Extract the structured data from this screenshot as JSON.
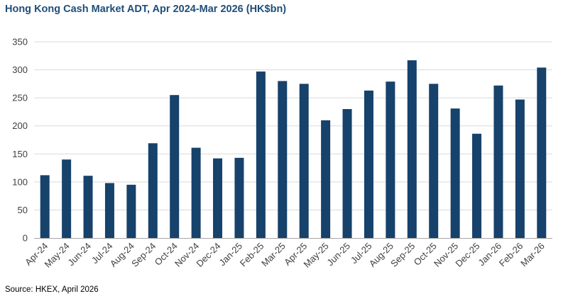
{
  "title": "Hong Kong Cash Market ADT, Apr 2024-Mar 2026 (HK$bn)",
  "source": "Source: HKEX, April 2026",
  "colors": {
    "bar": "#16426b",
    "grid": "#d9d9d9",
    "axis": "#a6a6a6",
    "title": "#1f4e79"
  },
  "chart_data": {
    "type": "bar",
    "title": "Hong Kong Cash Market ADT, Apr 2024-Mar 2026 (HK$bn)",
    "xlabel": "",
    "ylabel": "",
    "ylim": [
      0,
      350
    ],
    "yticks": [
      0,
      50,
      100,
      150,
      200,
      250,
      300,
      350
    ],
    "grid": true,
    "legend": "none",
    "categories": [
      "Apr-24",
      "May-24",
      "Jun-24",
      "Jul-24",
      "Aug-24",
      "Sep-24",
      "Oct-24",
      "Nov-24",
      "Dec-24",
      "Jan-25",
      "Feb-25",
      "Mar-25",
      "Apr-25",
      "May-25",
      "Jun-25",
      "Jul-25",
      "Aug-25",
      "Sep-25",
      "Oct-25",
      "Nov-25",
      "Dec-25",
      "Jan-26",
      "Feb-26",
      "Mar-26"
    ],
    "values": [
      112,
      140,
      111,
      98,
      95,
      169,
      255,
      161,
      142,
      143,
      297,
      280,
      275,
      210,
      230,
      263,
      279,
      317,
      275,
      231,
      186,
      272,
      247,
      304
    ]
  }
}
